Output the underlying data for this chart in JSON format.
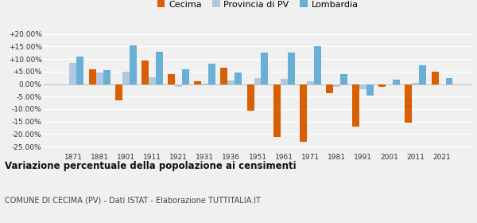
{
  "years": [
    1871,
    1881,
    1901,
    1911,
    1921,
    1931,
    1936,
    1951,
    1961,
    1971,
    1981,
    1991,
    2001,
    2011,
    2021
  ],
  "cecima": [
    -0.3,
    6.0,
    -6.5,
    9.5,
    4.0,
    1.0,
    6.5,
    -10.5,
    -21.0,
    -23.0,
    -3.5,
    -17.0,
    -1.0,
    -15.5,
    4.8
  ],
  "provincia": [
    8.5,
    4.5,
    5.0,
    2.8,
    -1.2,
    0.2,
    1.5,
    2.5,
    2.0,
    1.2,
    -1.0,
    -2.0,
    -0.5,
    0.5,
    -0.5
  ],
  "lombardia": [
    11.0,
    5.5,
    15.5,
    13.0,
    6.0,
    8.0,
    4.5,
    12.5,
    12.5,
    15.0,
    4.0,
    -4.5,
    1.8,
    7.5,
    2.5
  ],
  "cecima_color": "#d95f02",
  "provincia_color": "#aec9e0",
  "lombardia_color": "#6aafd4",
  "bg_color": "#f0f0f0",
  "grid_color": "#ffffff",
  "title": "Variazione percentuale della popolazione ai censimenti",
  "subtitle": "COMUNE DI CECIMA (PV) - Dati ISTAT - Elaborazione TUTTITALIA.IT",
  "ylim": [
    -27,
    22
  ],
  "yticks": [
    -25,
    -20,
    -15,
    -10,
    -5,
    0,
    5,
    10,
    15,
    20
  ],
  "legend_labels": [
    "Cecima",
    "Provincia di PV",
    "Lombardia"
  ]
}
